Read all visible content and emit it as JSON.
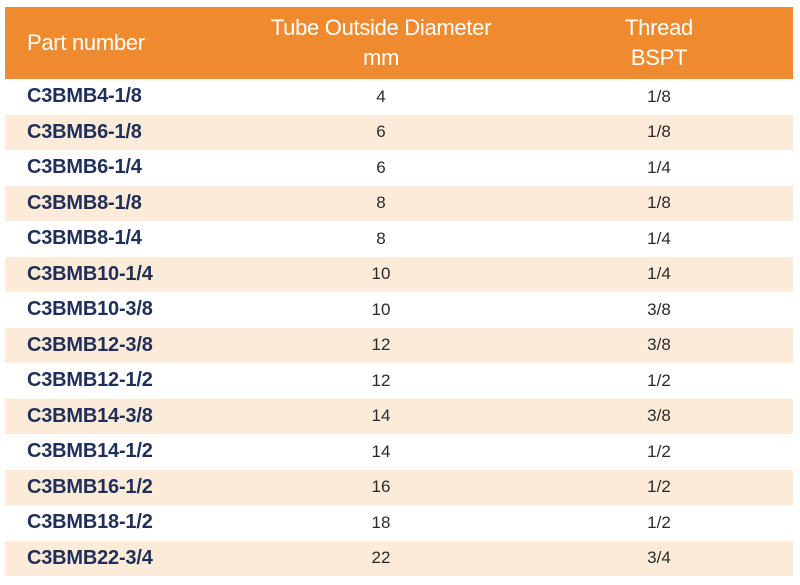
{
  "header": {
    "part_label": "Part number",
    "od_label_line1": "Tube Outside Diameter",
    "od_label_line2": "mm",
    "thread_label_line1": "Thread",
    "thread_label_line2": "BSPT"
  },
  "colors": {
    "header_bg": "#ef8a2e",
    "stripe_bg": "#fcebd9",
    "part_text": "#1f2f5a"
  },
  "rows": [
    {
      "part": "C3BMB4-1/8",
      "od": "4",
      "thread": "1/8"
    },
    {
      "part": "C3BMB6-1/8",
      "od": "6",
      "thread": "1/8"
    },
    {
      "part": "C3BMB6-1/4",
      "od": "6",
      "thread": "1/4"
    },
    {
      "part": "C3BMB8-1/8",
      "od": "8",
      "thread": "1/8"
    },
    {
      "part": "C3BMB8-1/4",
      "od": "8",
      "thread": "1/4"
    },
    {
      "part": "C3BMB10-1/4",
      "od": "10",
      "thread": "1/4"
    },
    {
      "part": "C3BMB10-3/8",
      "od": "10",
      "thread": "3/8"
    },
    {
      "part": "C3BMB12-3/8",
      "od": "12",
      "thread": "3/8"
    },
    {
      "part": "C3BMB12-1/2",
      "od": "12",
      "thread": "1/2"
    },
    {
      "part": "C3BMB14-3/8",
      "od": "14",
      "thread": "3/8"
    },
    {
      "part": "C3BMB14-1/2",
      "od": "14",
      "thread": "1/2"
    },
    {
      "part": "C3BMB16-1/2",
      "od": "16",
      "thread": "1/2"
    },
    {
      "part": "C3BMB18-1/2",
      "od": "18",
      "thread": "1/2"
    },
    {
      "part": "C3BMB22-3/4",
      "od": "22",
      "thread": "3/4"
    }
  ]
}
